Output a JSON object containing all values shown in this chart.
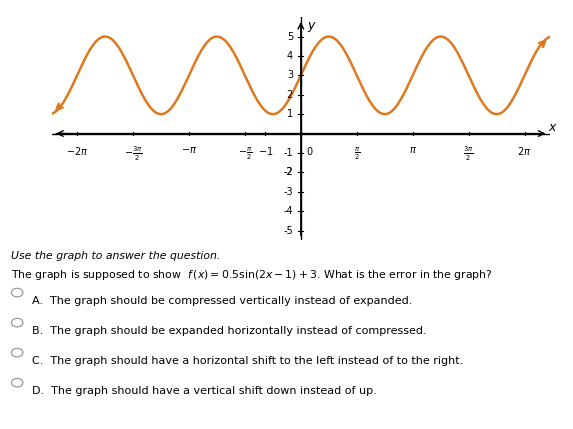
{
  "curve_color": "#E0781E",
  "curve_linewidth": 1.8,
  "amplitude": 2,
  "vertical_shift": 3,
  "frequency": 2,
  "xlim": [
    -7.0,
    7.0
  ],
  "ylim": [
    -5.5,
    6.0
  ],
  "yticks": [
    -5,
    -4,
    -3,
    -2,
    -1,
    1,
    2,
    3,
    4,
    5
  ],
  "background_color": "#ffffff",
  "grid_color": "#cccccc",
  "question_line1": "Use the graph to answer the question.",
  "question_line2": "The graph is supposed to show  $f\\,(x) = 0.5\\sin(2x-1)+3$. What is the error in the graph?",
  "answer_A": "A.  The graph should be compressed vertically instead of expanded.",
  "answer_B": "B.  The graph should be expanded horizontally instead of compressed.",
  "answer_C": "C.  The graph should have a horizontal shift to the left instead of to the right.",
  "answer_D": "D.  The graph should have a vertical shift down instead of up."
}
